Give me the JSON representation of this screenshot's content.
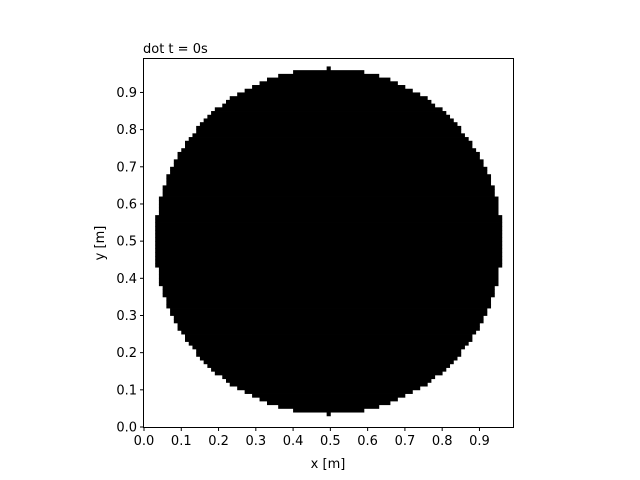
{
  "chart_data": {
    "type": "heatmap",
    "title": "dot  t = 0s",
    "xlabel": "x [m]",
    "ylabel": "y [m]",
    "xlim": [
      0,
      0.99
    ],
    "ylim": [
      0,
      0.99
    ],
    "x_ticks": [
      "0.0",
      "0.1",
      "0.2",
      "0.3",
      "0.4",
      "0.5",
      "0.6",
      "0.7",
      "0.8",
      "0.9"
    ],
    "y_ticks": [
      "0.0",
      "0.1",
      "0.2",
      "0.3",
      "0.4",
      "0.5",
      "0.6",
      "0.7",
      "0.8",
      "0.9"
    ],
    "grid": false,
    "grid_cells": 99,
    "shape": {
      "kind": "filled-disc",
      "center": [
        0.495,
        0.5
      ],
      "radius": 0.465,
      "fill_color": "#000000",
      "background_color": "#ffffff"
    }
  }
}
